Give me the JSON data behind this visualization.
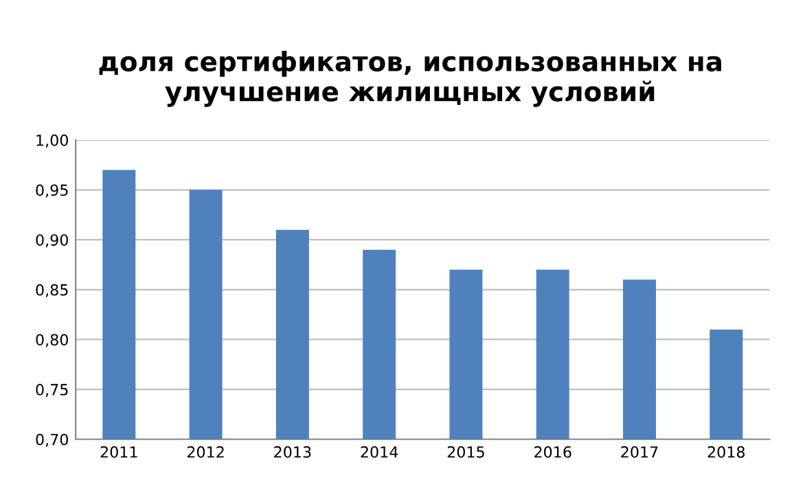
{
  "chart_data": {
    "type": "bar",
    "title": "доля сертификатов, использованных на улучшение жилищных условий",
    "categories": [
      "2011",
      "2012",
      "2013",
      "2014",
      "2015",
      "2016",
      "2017",
      "2018"
    ],
    "values": [
      0.97,
      0.95,
      0.91,
      0.89,
      0.87,
      0.87,
      0.86,
      0.81
    ],
    "color": "#4f81bd",
    "ylim": [
      0.7,
      1.0
    ],
    "yticks": [
      {
        "value": 0.7,
        "label": "0,70"
      },
      {
        "value": 0.75,
        "label": "0,75"
      },
      {
        "value": 0.8,
        "label": "0,80"
      },
      {
        "value": 0.85,
        "label": "0,85"
      },
      {
        "value": 0.9,
        "label": "0,90"
      },
      {
        "value": 0.95,
        "label": "0,95"
      },
      {
        "value": 1.0,
        "label": "1,00"
      }
    ],
    "grid": "y"
  }
}
